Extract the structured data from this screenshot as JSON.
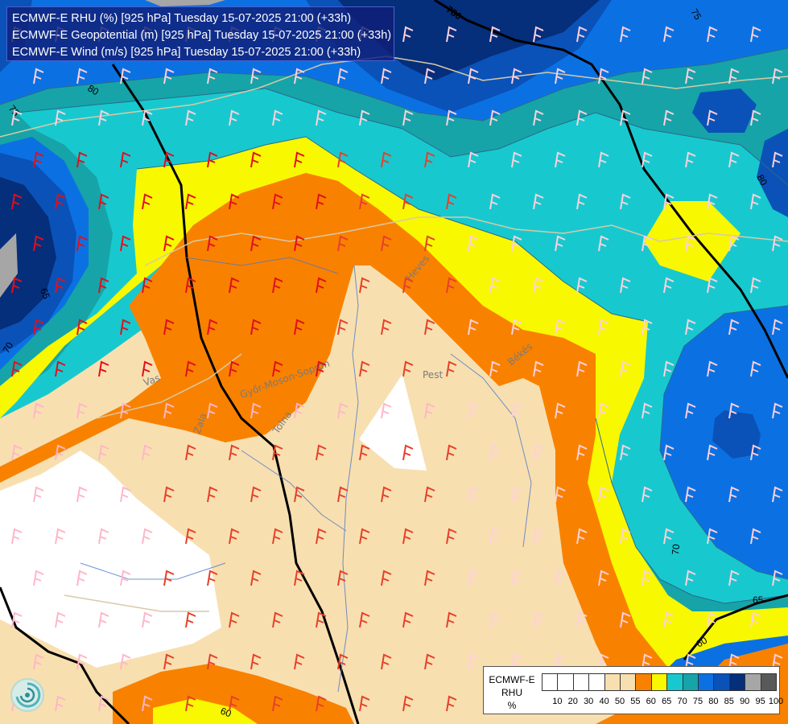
{
  "header": {
    "line1": "ECMWF-E RHU (%) [925 hPa] Tuesday 15-07-2025 21:00 (+33h)",
    "line2": "ECMWF-E Geopotential (m) [925 hPa] Tuesday 15-07-2025 21:00 (+33h)",
    "line3": "ECMWF-E Wind (m/s) [925 hPa] Tuesday 15-07-2025 21:00 (+33h)"
  },
  "legend": {
    "title1": "ECMWF-E",
    "title2": "RHU",
    "unit": "%",
    "ticks": [
      "10",
      "20",
      "30",
      "40",
      "50",
      "55",
      "60",
      "65",
      "70",
      "75",
      "80",
      "85",
      "90",
      "95",
      "100"
    ],
    "colors": [
      "#ffffff",
      "#ffffff",
      "#ffffff",
      "#ffffff",
      "#f8dfb0",
      "#f8dfb0",
      "#f98100",
      "#f8f800",
      "#17c9cf",
      "#16a4a8",
      "#0b71e3",
      "#0a52b8",
      "#052e7b",
      "#a6a6a6",
      "#595959"
    ]
  },
  "colors": {
    "dry": "#f8dfb0",
    "orange": "#f98100",
    "yellow": "#f8f800",
    "cyan": "#17c9cf",
    "teal": "#16a4a8",
    "blue": "#0b71e3",
    "midblue": "#0a52b8",
    "navy": "#052e7b",
    "grey": "#a6a6a6"
  },
  "contours": {
    "geopotential": [
      "780",
      "780"
    ],
    "rhu": [
      "80",
      "75",
      "80",
      "70",
      "70",
      "65",
      "60",
      "60",
      "80",
      "75",
      "65"
    ]
  },
  "places": [
    "Pest",
    "Heves",
    "Békés",
    "Vas",
    "Zala",
    "Győr-Moson-Sopron",
    "Tolna"
  ],
  "icons": {
    "logo": "ecmwf-swirl-icon",
    "wind": "wind-barb-icon",
    "calm": "calm-wind-circle-icon"
  }
}
